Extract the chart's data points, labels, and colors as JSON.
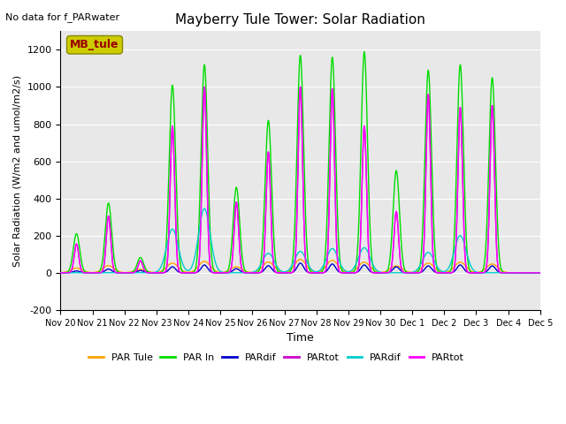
{
  "title": "Mayberry Tule Tower: Solar Radiation",
  "subtitle": "No data for f_PARwater",
  "xlabel": "Time",
  "ylabel": "Solar Radiation (W/m2 and umol/m2/s)",
  "ylim": [
    -200,
    1300
  ],
  "xlim": [
    0,
    15
  ],
  "background_color": "#e8e8e8",
  "legend_entries": [
    "PAR Tule",
    "PAR In",
    "PARdif",
    "PARtot",
    "PARdif",
    "PARtot"
  ],
  "legend_colors": [
    "#FFA500",
    "#00DD00",
    "#0000CC",
    "#CC00CC",
    "#00CCCC",
    "#FF00FF"
  ],
  "xtick_labels": [
    "Nov 20",
    "Nov 21",
    "Nov 22",
    "Nov 23",
    "Nov 24",
    "Nov 25",
    "Nov 26",
    "Nov 27",
    "Nov 28",
    "Nov 29",
    "Nov 30",
    "Dec 1",
    "Dec 2",
    "Dec 3",
    "Dec 4",
    "Dec 5"
  ],
  "ytick_labels": [
    -200,
    0,
    200,
    400,
    600,
    800,
    1000,
    1200
  ],
  "day_peaks": [
    {
      "day": 0.5,
      "orange": 25,
      "green": 210,
      "blue": 10,
      "purple": 155,
      "cyan": 0,
      "magenta": 155,
      "green2": 0,
      "magenta2": 0
    },
    {
      "day": 1.5,
      "orange": 38,
      "green": 375,
      "blue": 20,
      "purple": 305,
      "cyan": 0,
      "magenta": 305,
      "green2": 335,
      "magenta2": 0
    },
    {
      "day": 2.5,
      "orange": 18,
      "green": 82,
      "blue": 12,
      "purple": 65,
      "cyan": 0,
      "magenta": 65,
      "green2": 0,
      "magenta2": 0
    },
    {
      "day": 3.5,
      "orange": 52,
      "green": 1010,
      "blue": 32,
      "purple": 790,
      "cyan": 235,
      "magenta": 790,
      "green2": 0,
      "magenta2": 0
    },
    {
      "day": 4.5,
      "orange": 62,
      "green": 1120,
      "blue": 42,
      "purple": 1000,
      "cyan": 345,
      "magenta": 1000,
      "green2": 0,
      "magenta2": 0
    },
    {
      "day": 5.5,
      "orange": 32,
      "green": 460,
      "blue": 22,
      "purple": 380,
      "cyan": 0,
      "magenta": 380,
      "green2": 0,
      "magenta2": 0
    },
    {
      "day": 6.5,
      "orange": 58,
      "green": 820,
      "blue": 38,
      "purple": 650,
      "cyan": 105,
      "magenta": 650,
      "green2": 0,
      "magenta2": 0
    },
    {
      "day": 7.5,
      "orange": 72,
      "green": 1170,
      "blue": 52,
      "purple": 1000,
      "cyan": 115,
      "magenta": 1000,
      "green2": 0,
      "magenta2": 0
    },
    {
      "day": 8.5,
      "orange": 67,
      "green": 1160,
      "blue": 47,
      "purple": 990,
      "cyan": 130,
      "magenta": 990,
      "green2": 1160,
      "magenta2": 990
    },
    {
      "day": 9.5,
      "orange": 57,
      "green": 1190,
      "blue": 42,
      "purple": 790,
      "cyan": 135,
      "magenta": 790,
      "green2": 0,
      "magenta2": 0
    },
    {
      "day": 10.5,
      "orange": 37,
      "green": 550,
      "blue": 32,
      "purple": 330,
      "cyan": 0,
      "magenta": 330,
      "green2": 0,
      "magenta2": 0
    },
    {
      "day": 11.5,
      "orange": 52,
      "green": 1090,
      "blue": 37,
      "purple": 960,
      "cyan": 110,
      "magenta": 960,
      "green2": 0,
      "magenta2": 0
    },
    {
      "day": 12.5,
      "orange": 57,
      "green": 1120,
      "blue": 42,
      "purple": 890,
      "cyan": 200,
      "magenta": 890,
      "green2": 0,
      "magenta2": 0
    },
    {
      "day": 13.5,
      "orange": 47,
      "green": 1050,
      "blue": 37,
      "purple": 900,
      "cyan": 0,
      "magenta": 900,
      "green2": 0,
      "magenta2": 0
    }
  ],
  "sigma_orange": 0.18,
  "sigma_green": 0.1,
  "sigma_blue": 0.1,
  "sigma_purple": 0.07,
  "sigma_cyan": 0.18,
  "sigma_magenta": 0.07,
  "mb_tule_box_color": "#CCCC00",
  "mb_tule_text_color": "#990000"
}
